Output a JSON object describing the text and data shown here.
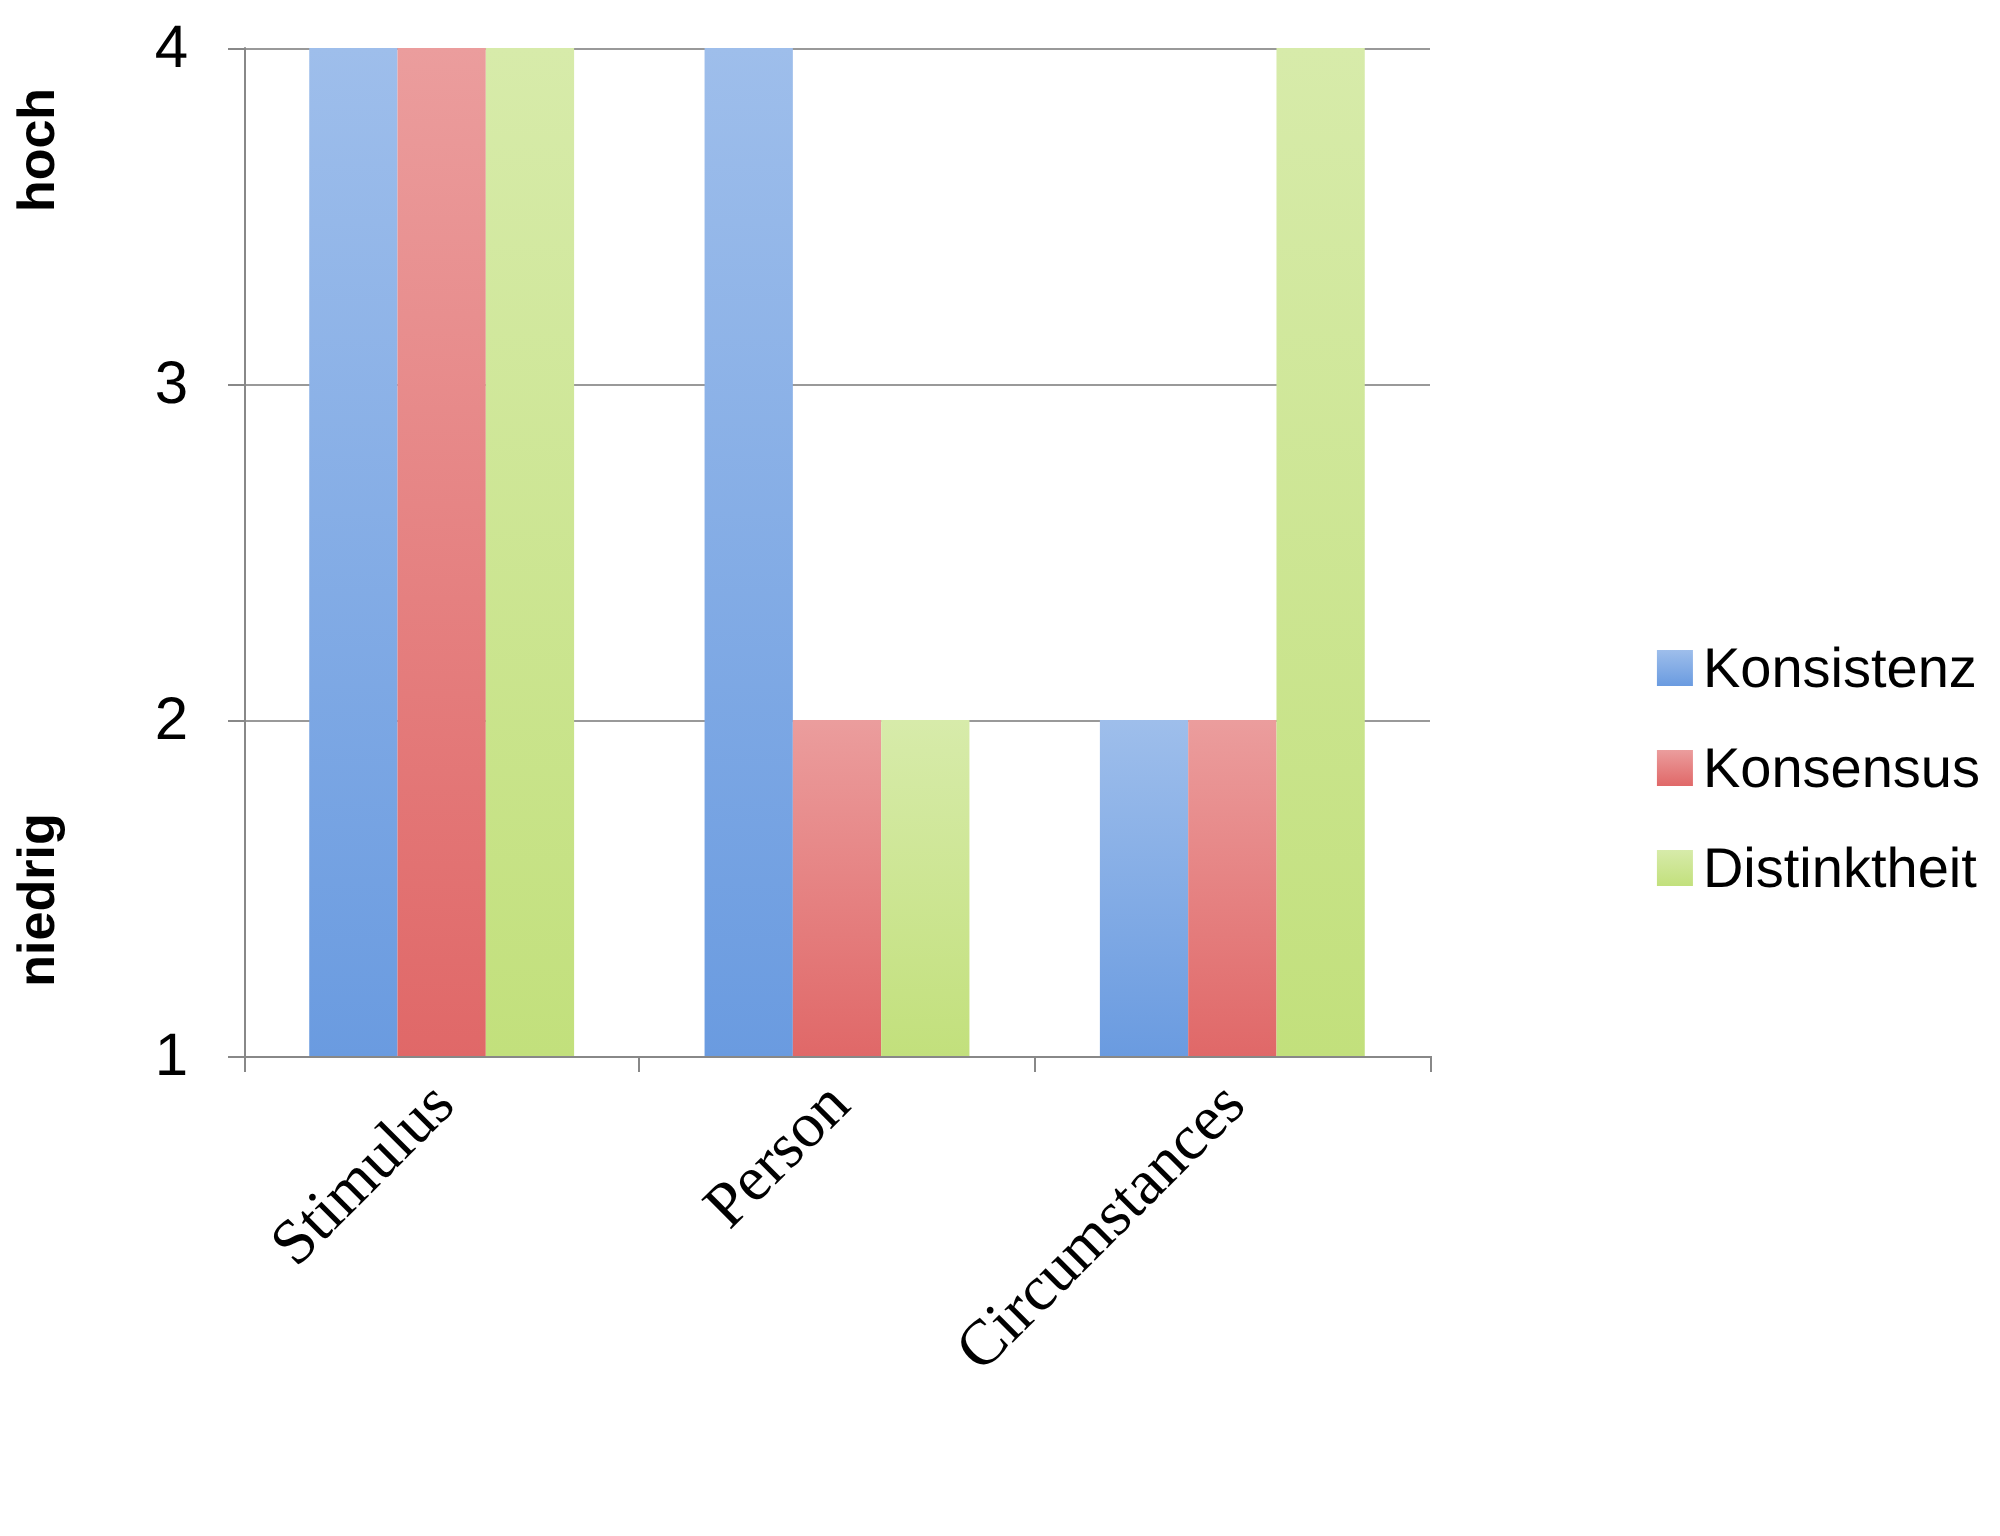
{
  "chart_data": {
    "type": "bar",
    "categories": [
      "Stimulus",
      "Person",
      "Circumstances"
    ],
    "series": [
      {
        "name": "Konsistenz",
        "color": "#6a9be0",
        "values": [
          4,
          4,
          2
        ]
      },
      {
        "name": "Konsensus",
        "color": "#e06868",
        "values": [
          4,
          2,
          2
        ]
      },
      {
        "name": "Distinktheit",
        "color": "#c2e07c",
        "values": [
          4,
          2,
          4
        ]
      }
    ],
    "ylim": [
      1,
      4
    ],
    "yticks": [
      1,
      2,
      3,
      4
    ],
    "grid": "y",
    "legend": "right",
    "annotations": [
      "hoch",
      "niedrig"
    ]
  }
}
